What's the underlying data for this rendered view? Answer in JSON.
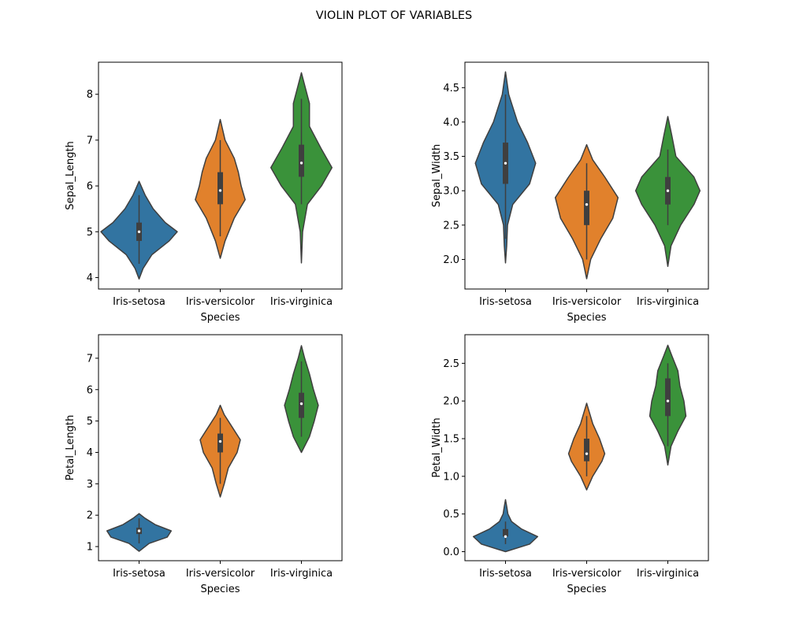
{
  "suptitle": "VIOLIN PLOT OF VARIABLES",
  "colors": {
    "Iris-setosa": "#3274a1",
    "Iris-versicolor": "#e1812c",
    "Iris-virginica": "#3a923a",
    "edge": "#3f3f3f",
    "box": "#3f3f3f"
  },
  "chart_data": [
    {
      "type": "violin",
      "xlabel": "Species",
      "ylabel": "Sepal_Length",
      "categories": [
        "Iris-setosa",
        "Iris-versicolor",
        "Iris-virginica"
      ],
      "ylim": [
        3.75,
        8.7
      ],
      "yticks": [
        4,
        5,
        6,
        7,
        8
      ],
      "ytick_labels": [
        "4",
        "5",
        "6",
        "7",
        "8"
      ],
      "violins": [
        {
          "category": "Iris-setosa",
          "median": 5.0,
          "q1": 4.8,
          "q3": 5.2,
          "whisker_low": 4.3,
          "whisker_high": 5.8,
          "kde_y": [
            3.97,
            4.2,
            4.5,
            4.8,
            5.0,
            5.2,
            5.5,
            5.8,
            6.1
          ],
          "kde_w": [
            0,
            0.1,
            0.32,
            0.75,
            0.95,
            0.65,
            0.35,
            0.15,
            0
          ]
        },
        {
          "category": "Iris-versicolor",
          "median": 5.9,
          "q1": 5.6,
          "q3": 6.3,
          "whisker_low": 4.9,
          "whisker_high": 7.0,
          "kde_y": [
            4.42,
            4.8,
            5.3,
            5.7,
            6.0,
            6.3,
            6.6,
            7.0,
            7.45
          ],
          "kde_w": [
            0,
            0.12,
            0.35,
            0.62,
            0.52,
            0.45,
            0.35,
            0.12,
            0
          ]
        },
        {
          "category": "Iris-virginica",
          "median": 6.5,
          "q1": 6.2,
          "q3": 6.9,
          "whisker_low": 5.6,
          "whisker_high": 7.9,
          "kde_y": [
            4.32,
            5.0,
            5.6,
            6.0,
            6.4,
            6.8,
            7.3,
            7.8,
            8.2,
            8.47
          ],
          "kde_w": [
            0,
            0.03,
            0.15,
            0.5,
            0.76,
            0.5,
            0.2,
            0.2,
            0.08,
            0
          ]
        }
      ]
    },
    {
      "type": "violin",
      "xlabel": "Species",
      "ylabel": "Sepal_Width",
      "categories": [
        "Iris-setosa",
        "Iris-versicolor",
        "Iris-virginica"
      ],
      "ylim": [
        1.57,
        4.87
      ],
      "yticks": [
        2.0,
        2.5,
        3.0,
        3.5,
        4.0,
        4.5
      ],
      "ytick_labels": [
        "2.0",
        "2.5",
        "3.0",
        "3.5",
        "4.0",
        "4.5"
      ],
      "violins": [
        {
          "category": "Iris-setosa",
          "median": 3.4,
          "q1": 3.1,
          "q3": 3.7,
          "whisker_low": 2.3,
          "whisker_high": 4.4,
          "kde_y": [
            1.95,
            2.2,
            2.5,
            2.8,
            3.1,
            3.4,
            3.7,
            4.0,
            4.4,
            4.73
          ],
          "kde_w": [
            0,
            0.03,
            0.05,
            0.18,
            0.6,
            0.75,
            0.55,
            0.3,
            0.08,
            0
          ]
        },
        {
          "category": "Iris-versicolor",
          "median": 2.8,
          "q1": 2.5,
          "q3": 3.0,
          "whisker_low": 2.0,
          "whisker_high": 3.4,
          "kde_y": [
            1.72,
            2.0,
            2.3,
            2.6,
            2.9,
            3.2,
            3.45,
            3.67
          ],
          "kde_w": [
            0,
            0.1,
            0.35,
            0.65,
            0.78,
            0.45,
            0.15,
            0
          ]
        },
        {
          "category": "Iris-virginica",
          "median": 3.0,
          "q1": 2.8,
          "q3": 3.2,
          "whisker_low": 2.5,
          "whisker_high": 3.6,
          "kde_y": [
            1.9,
            2.2,
            2.5,
            2.8,
            3.0,
            3.2,
            3.5,
            3.8,
            4.08
          ],
          "kde_w": [
            0,
            0.08,
            0.32,
            0.65,
            0.8,
            0.65,
            0.2,
            0.1,
            0
          ]
        }
      ]
    },
    {
      "type": "violin",
      "xlabel": "Species",
      "ylabel": "Petal_Length",
      "categories": [
        "Iris-setosa",
        "Iris-versicolor",
        "Iris-virginica"
      ],
      "ylim": [
        0.55,
        7.75
      ],
      "yticks": [
        1,
        2,
        3,
        4,
        5,
        6,
        7
      ],
      "ytick_labels": [
        "1",
        "2",
        "3",
        "4",
        "5",
        "6",
        "7"
      ],
      "violins": [
        {
          "category": "Iris-setosa",
          "median": 1.5,
          "q1": 1.4,
          "q3": 1.6,
          "whisker_low": 1.1,
          "whisker_high": 1.9,
          "kde_y": [
            0.85,
            1.1,
            1.3,
            1.5,
            1.7,
            1.9,
            2.05
          ],
          "kde_w": [
            0,
            0.25,
            0.7,
            0.8,
            0.4,
            0.15,
            0
          ]
        },
        {
          "category": "Iris-versicolor",
          "median": 4.35,
          "q1": 4.0,
          "q3": 4.6,
          "whisker_low": 3.0,
          "whisker_high": 5.1,
          "kde_y": [
            2.58,
            3.0,
            3.5,
            4.0,
            4.4,
            4.8,
            5.2,
            5.5
          ],
          "kde_w": [
            0,
            0.1,
            0.2,
            0.42,
            0.5,
            0.3,
            0.1,
            0
          ]
        },
        {
          "category": "Iris-virginica",
          "median": 5.55,
          "q1": 5.1,
          "q3": 5.9,
          "whisker_low": 4.5,
          "whisker_high": 6.9,
          "kde_y": [
            4.0,
            4.5,
            5.0,
            5.5,
            6.0,
            6.5,
            7.0,
            7.4
          ],
          "kde_w": [
            0,
            0.2,
            0.32,
            0.42,
            0.3,
            0.2,
            0.08,
            0
          ]
        }
      ]
    },
    {
      "type": "violin",
      "xlabel": "Species",
      "ylabel": "Petal_Width",
      "categories": [
        "Iris-setosa",
        "Iris-versicolor",
        "Iris-virginica"
      ],
      "ylim": [
        -0.12,
        2.88
      ],
      "yticks": [
        0.0,
        0.5,
        1.0,
        1.5,
        2.0,
        2.5
      ],
      "ytick_labels": [
        "0.0",
        "0.5",
        "1.0",
        "1.5",
        "2.0",
        "2.5"
      ],
      "violins": [
        {
          "category": "Iris-setosa",
          "median": 0.2,
          "q1": 0.2,
          "q3": 0.3,
          "whisker_low": 0.1,
          "whisker_high": 0.4,
          "kde_y": [
            0.0,
            0.1,
            0.2,
            0.3,
            0.4,
            0.5,
            0.6,
            0.69
          ],
          "kde_w": [
            0,
            0.6,
            0.8,
            0.4,
            0.15,
            0.06,
            0.03,
            0
          ]
        },
        {
          "category": "Iris-versicolor",
          "median": 1.3,
          "q1": 1.2,
          "q3": 1.5,
          "whisker_low": 1.0,
          "whisker_high": 1.8,
          "kde_y": [
            0.82,
            1.0,
            1.2,
            1.3,
            1.5,
            1.7,
            1.97
          ],
          "kde_w": [
            0,
            0.15,
            0.38,
            0.45,
            0.32,
            0.15,
            0
          ]
        },
        {
          "category": "Iris-virginica",
          "median": 2.0,
          "q1": 1.8,
          "q3": 2.3,
          "whisker_low": 1.4,
          "whisker_high": 2.5,
          "kde_y": [
            1.15,
            1.4,
            1.6,
            1.8,
            2.0,
            2.2,
            2.4,
            2.6,
            2.74
          ],
          "kde_w": [
            0,
            0.08,
            0.25,
            0.45,
            0.4,
            0.3,
            0.25,
            0.1,
            0
          ]
        }
      ]
    }
  ]
}
